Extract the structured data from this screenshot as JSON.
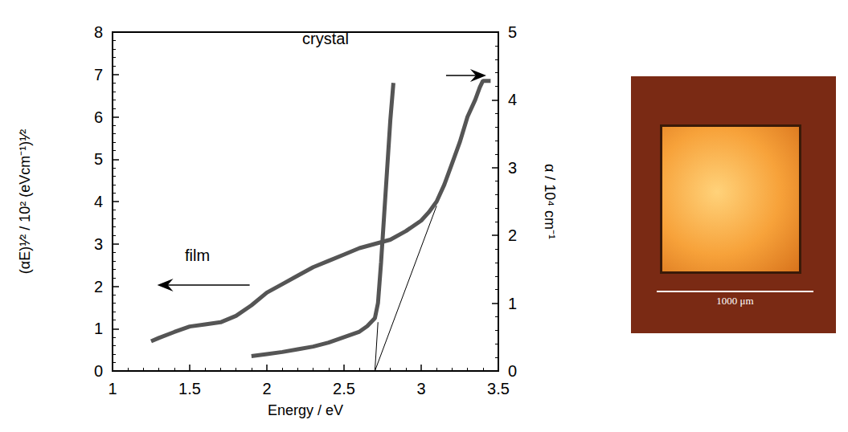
{
  "chart_data": {
    "type": "line",
    "x_label": "Energy / eV",
    "y_label": "(αE)¹⁄² / 10² (eVcm⁻¹)¹⁄²",
    "y2_label": "α / 10⁴ cm⁻¹",
    "xlim": [
      1,
      3.5
    ],
    "xticks": [
      1,
      1.5,
      2,
      2.5,
      3,
      3.5
    ],
    "ylim": [
      0,
      8
    ],
    "yticks": [
      0,
      1,
      2,
      3,
      4,
      5,
      6,
      7,
      8
    ],
    "y2lim": [
      0,
      5
    ],
    "y2ticks": [
      0,
      1,
      2,
      3,
      4,
      5
    ],
    "grid": false,
    "series": [
      {
        "name": "film",
        "axis": "y",
        "color": "#555555",
        "marker": "none",
        "line_style": "solid",
        "x": [
          1.25,
          1.3,
          1.4,
          1.5,
          1.6,
          1.7,
          1.8,
          1.9,
          2.0,
          2.1,
          2.2,
          2.3,
          2.4,
          2.5,
          2.6,
          2.7,
          2.8,
          2.9,
          3.0,
          3.05,
          3.1,
          3.15,
          3.2,
          3.25,
          3.3,
          3.35,
          3.38,
          3.4,
          3.45
        ],
        "values": [
          0.7,
          0.78,
          0.92,
          1.05,
          1.1,
          1.15,
          1.3,
          1.55,
          1.85,
          2.05,
          2.25,
          2.45,
          2.6,
          2.75,
          2.9,
          3.0,
          3.1,
          3.3,
          3.55,
          3.75,
          4.0,
          4.4,
          4.9,
          5.4,
          6.0,
          6.4,
          6.7,
          6.85,
          6.85
        ]
      },
      {
        "name": "crystal",
        "axis": "y2",
        "color": "#555555",
        "marker": "none",
        "line_style": "solid",
        "x": [
          1.9,
          2.0,
          2.1,
          2.2,
          2.3,
          2.4,
          2.5,
          2.6,
          2.65,
          2.7,
          2.72,
          2.74,
          2.76,
          2.78,
          2.8,
          2.82
        ],
        "values": [
          0.22,
          0.25,
          0.28,
          0.32,
          0.36,
          0.42,
          0.5,
          0.58,
          0.66,
          0.78,
          1.0,
          1.6,
          2.3,
          3.0,
          3.7,
          4.25
        ]
      }
    ],
    "fits": [
      {
        "axis": "y",
        "color": "#000000",
        "line_style": "solid",
        "x": [
          2.7,
          3.1
        ],
        "values": [
          0,
          3.9
        ]
      },
      {
        "axis": "y2",
        "color": "#000000",
        "line_style": "solid",
        "x": [
          2.7,
          2.72
        ],
        "values": [
          0,
          0.72
        ]
      }
    ],
    "annotations": [
      {
        "text": "film",
        "series": "film",
        "x": 1.55,
        "y": 2.73
      },
      {
        "text": "crystal",
        "series": "crystal",
        "x": 2.38,
        "y": 7.85
      }
    ]
  },
  "photo": {
    "scale_bar_label": "1000 μm"
  }
}
